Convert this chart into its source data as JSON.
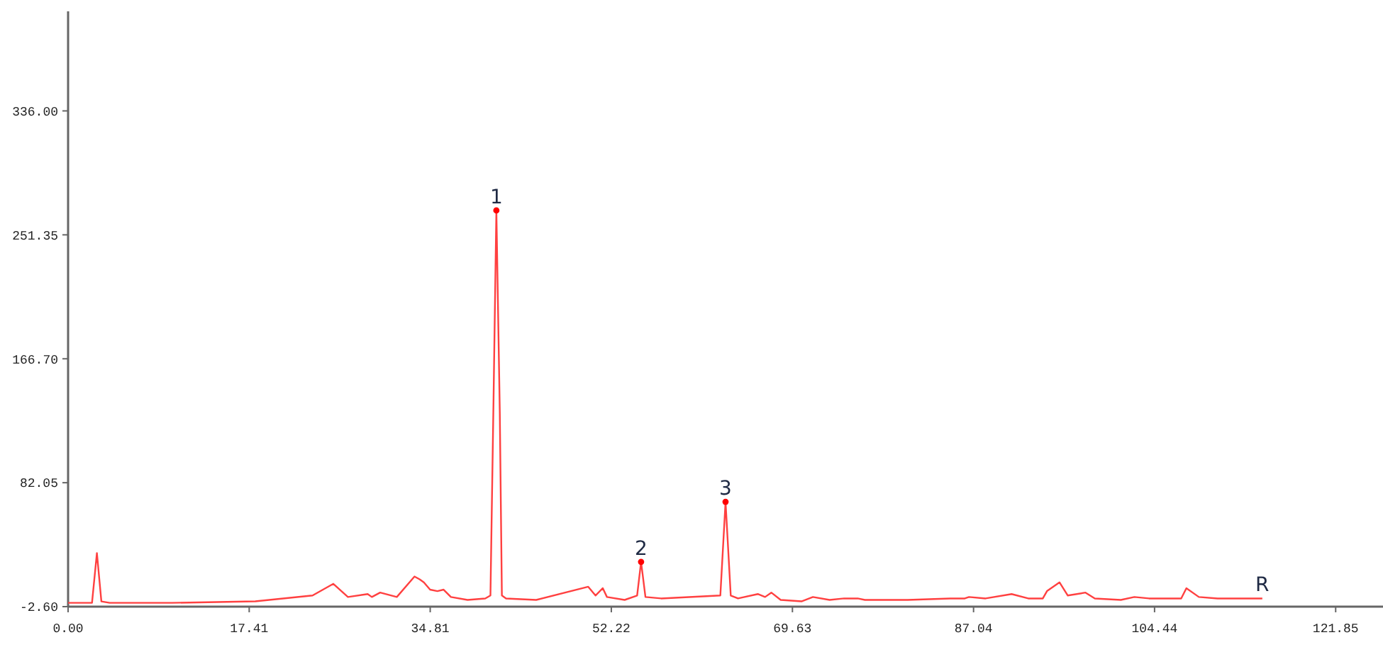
{
  "chart_data": {
    "type": "line",
    "xlim": [
      0,
      126.4
    ],
    "ylim": [
      -2.6,
      404
    ],
    "xticks": [
      {
        "value": 0,
        "label": "0.00"
      },
      17.41,
      34.81,
      52.22,
      69.63,
      87.04,
      104.44,
      121.85
    ],
    "yticks": [
      {
        "value": -2.6,
        "label": "-2.60"
      },
      82.05,
      {
        "value": 166.7,
        "label": "166.70"
      },
      251.35,
      {
        "value": 336,
        "label": "336.00"
      }
    ],
    "grid": false,
    "marker": "none",
    "line_style": "solid",
    "series": [
      {
        "color": "#ff4040",
        "x": [
          0,
          2.3,
          2.77,
          3.2,
          4,
          10,
          18,
          23.5,
          25.5,
          26.9,
          28.8,
          29.2,
          30,
          31.6,
          33.3,
          33.8,
          34.2,
          34.8,
          35.5,
          36.1,
          36.8,
          38.4,
          40.1,
          40.6,
          40.9,
          41.17,
          41.5,
          41.7,
          42.1,
          45,
          50,
          50.7,
          51.4,
          51.8,
          53.5,
          54.7,
          55.08,
          55.5,
          57,
          62.7,
          63.2,
          63.7,
          64.4,
          66.3,
          67,
          67.6,
          68.5,
          70.5,
          71.6,
          73.2,
          74.6,
          75.9,
          76.6,
          80.7,
          84.8,
          86.2,
          86.6,
          88.2,
          90.7,
          92.3,
          93.7,
          94.1,
          95.3,
          96.1,
          97.8,
          98.7,
          101.2,
          102.5,
          103.9,
          107,
          107.5,
          108.7,
          110.5,
          114.8
        ],
        "values": [
          0,
          0,
          34,
          1,
          0,
          0,
          1,
          5,
          13,
          4,
          6,
          4,
          7,
          4,
          18,
          16,
          14,
          9,
          8,
          9,
          4,
          2,
          3,
          5,
          140,
          268,
          130,
          5,
          3,
          2,
          11,
          5,
          10,
          4,
          2,
          5,
          28,
          4,
          3,
          5,
          69,
          5,
          3,
          6,
          4,
          7,
          2,
          1,
          4,
          2,
          3,
          3,
          2,
          2,
          3,
          3,
          4,
          3,
          6,
          3,
          3,
          8,
          14,
          5,
          7,
          3,
          2,
          4,
          3,
          3,
          10,
          4,
          3,
          3
        ]
      },
      {
        "type": "scatter",
        "color": "#ff0000",
        "marker": "circle",
        "x": [
          41.17,
          55.08,
          63.2
        ],
        "values": [
          268,
          28,
          69
        ]
      }
    ],
    "annotations": [
      {
        "text": "1",
        "x": 41.17,
        "y": 268
      },
      {
        "text": "2",
        "x": 55.08,
        "y": 28
      },
      {
        "text": "3",
        "x": 63.2,
        "y": 69
      },
      {
        "text": "R",
        "x": 114.8,
        "y": 3
      }
    ]
  }
}
